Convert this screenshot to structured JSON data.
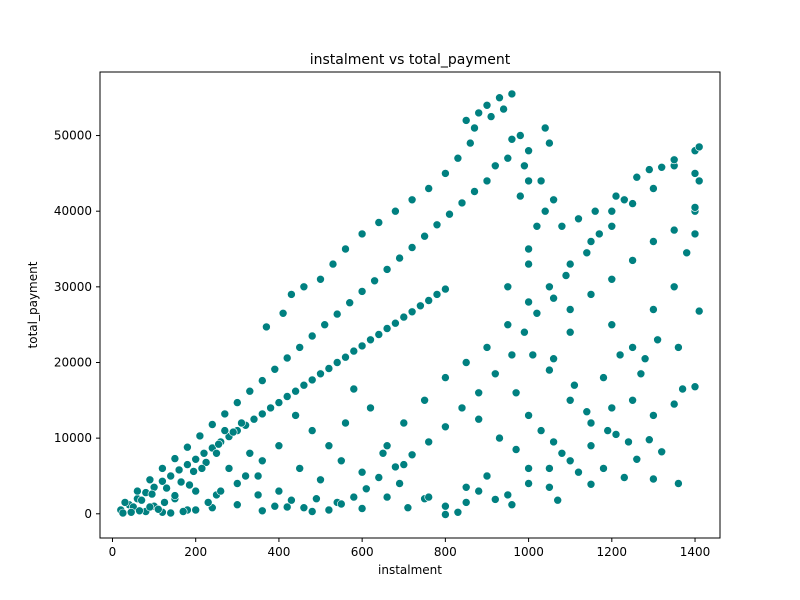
{
  "chart_data": {
    "type": "scatter",
    "title": "instalment vs total_payment",
    "xlabel": "instalment",
    "ylabel": "total_payment",
    "xlim": [
      -30,
      1460
    ],
    "ylim": [
      -3200,
      58400
    ],
    "xticks": [
      0,
      200,
      400,
      600,
      800,
      1000,
      1200,
      1400
    ],
    "yticks": [
      0,
      10000,
      20000,
      30000,
      40000,
      50000
    ],
    "xtick_labels": [
      "0",
      "200",
      "400",
      "600",
      "800",
      "1000",
      "1200",
      "1400"
    ],
    "ytick_labels": [
      "0",
      "10000",
      "20000",
      "30000",
      "40000",
      "50000"
    ],
    "grid": false,
    "marker_color": "#008080",
    "marker_edge_color": "#ffffff",
    "series": [
      {
        "points": [
          [
            20,
            500
          ],
          [
            40,
            1200
          ],
          [
            60,
            2000
          ],
          [
            80,
            2800
          ],
          [
            100,
            3500
          ],
          [
            120,
            4300
          ],
          [
            140,
            5000
          ],
          [
            160,
            5800
          ],
          [
            180,
            6500
          ],
          [
            200,
            7200
          ],
          [
            220,
            8000
          ],
          [
            240,
            8700
          ],
          [
            260,
            9500
          ],
          [
            280,
            10200
          ],
          [
            300,
            11000
          ],
          [
            320,
            11700
          ],
          [
            340,
            12500
          ],
          [
            360,
            13200
          ],
          [
            380,
            14000
          ],
          [
            400,
            14700
          ],
          [
            420,
            15500
          ],
          [
            440,
            16200
          ],
          [
            460,
            17000
          ],
          [
            480,
            17700
          ],
          [
            500,
            18500
          ],
          [
            520,
            19200
          ],
          [
            540,
            20000
          ],
          [
            560,
            20700
          ],
          [
            580,
            21500
          ],
          [
            600,
            22200
          ],
          [
            620,
            23000
          ],
          [
            640,
            23700
          ],
          [
            660,
            24500
          ],
          [
            680,
            25200
          ],
          [
            700,
            26000
          ],
          [
            720,
            26700
          ],
          [
            740,
            27500
          ],
          [
            760,
            28200
          ],
          [
            780,
            29000
          ],
          [
            800,
            29700
          ],
          [
            30,
            1500
          ],
          [
            60,
            3000
          ],
          [
            90,
            4500
          ],
          [
            120,
            6000
          ],
          [
            150,
            7300
          ],
          [
            180,
            8800
          ],
          [
            210,
            10300
          ],
          [
            240,
            11800
          ],
          [
            270,
            13200
          ],
          [
            300,
            14700
          ],
          [
            330,
            16200
          ],
          [
            360,
            17600
          ],
          [
            390,
            19100
          ],
          [
            420,
            20600
          ],
          [
            450,
            22000
          ],
          [
            480,
            23500
          ],
          [
            510,
            25000
          ],
          [
            540,
            26400
          ],
          [
            570,
            27900
          ],
          [
            600,
            29400
          ],
          [
            630,
            30800
          ],
          [
            660,
            32300
          ],
          [
            690,
            33800
          ],
          [
            720,
            35200
          ],
          [
            750,
            36700
          ],
          [
            780,
            38200
          ],
          [
            810,
            39600
          ],
          [
            840,
            41100
          ],
          [
            870,
            42600
          ],
          [
            900,
            44000
          ],
          [
            100,
            1000
          ],
          [
            150,
            2000
          ],
          [
            200,
            3000
          ],
          [
            250,
            2500
          ],
          [
            300,
            4000
          ],
          [
            350,
            5000
          ],
          [
            400,
            3000
          ],
          [
            450,
            6000
          ],
          [
            500,
            4500
          ],
          [
            550,
            7000
          ],
          [
            600,
            5500
          ],
          [
            650,
            8000
          ],
          [
            700,
            6500
          ],
          [
            750,
            2000
          ],
          [
            800,
            1000
          ],
          [
            850,
            3500
          ],
          [
            900,
            5000
          ],
          [
            950,
            2500
          ],
          [
            1000,
            4000
          ],
          [
            1050,
            6000
          ],
          [
            120,
            200
          ],
          [
            180,
            500
          ],
          [
            240,
            800
          ],
          [
            300,
            1200
          ],
          [
            360,
            400
          ],
          [
            420,
            900
          ],
          [
            480,
            300
          ],
          [
            540,
            1500
          ],
          [
            600,
            700
          ],
          [
            660,
            2200
          ],
          [
            700,
            12000
          ],
          [
            750,
            15000
          ],
          [
            800,
            18000
          ],
          [
            850,
            20000
          ],
          [
            900,
            22000
          ],
          [
            950,
            25000
          ],
          [
            1000,
            28000
          ],
          [
            1050,
            30000
          ],
          [
            1100,
            33000
          ],
          [
            1150,
            36000
          ],
          [
            1200,
            38000
          ],
          [
            1250,
            41000
          ],
          [
            1300,
            43000
          ],
          [
            1350,
            46000
          ],
          [
            1400,
            48000
          ],
          [
            1100,
            27000
          ],
          [
            1150,
            29000
          ],
          [
            1200,
            31000
          ],
          [
            1250,
            33500
          ],
          [
            1300,
            36000
          ],
          [
            1350,
            37500
          ],
          [
            1400,
            40000
          ],
          [
            1200,
            25000
          ],
          [
            1250,
            22000
          ],
          [
            1300,
            27000
          ],
          [
            1350,
            30000
          ],
          [
            1400,
            37000
          ],
          [
            1380,
            34500
          ],
          [
            1310,
            23000
          ],
          [
            1280,
            20500
          ],
          [
            850,
            52000
          ],
          [
            880,
            53000
          ],
          [
            900,
            54000
          ],
          [
            930,
            55000
          ],
          [
            960,
            55500
          ],
          [
            980,
            50000
          ],
          [
            1040,
            51000
          ],
          [
            1000,
            48000
          ],
          [
            950,
            47000
          ],
          [
            920,
            46000
          ],
          [
            1050,
            49000
          ],
          [
            1000,
            44000
          ],
          [
            980,
            42000
          ],
          [
            1040,
            40000
          ],
          [
            1020,
            38000
          ],
          [
            1000,
            35000
          ],
          [
            950,
            30000
          ],
          [
            1000,
            33000
          ],
          [
            1100,
            24000
          ],
          [
            1050,
            19000
          ],
          [
            1100,
            15000
          ],
          [
            1150,
            12000
          ],
          [
            1200,
            14000
          ],
          [
            1250,
            15000
          ],
          [
            1300,
            13000
          ],
          [
            1350,
            14500
          ],
          [
            1400,
            16800
          ],
          [
            1180,
            18000
          ],
          [
            1220,
            21000
          ],
          [
            1270,
            18500
          ],
          [
            1370,
            16500
          ],
          [
            1410,
            26800
          ],
          [
            1360,
            22000
          ],
          [
            1400,
            40500
          ],
          [
            1410,
            48500
          ],
          [
            1360,
            4000
          ],
          [
            1300,
            4600
          ],
          [
            1230,
            4800
          ],
          [
            1180,
            6000
          ],
          [
            1150,
            9000
          ],
          [
            1100,
            7000
          ],
          [
            1050,
            3500
          ],
          [
            1000,
            6000
          ],
          [
            970,
            8500
          ],
          [
            930,
            10000
          ],
          [
            880,
            12500
          ],
          [
            850,
            1500
          ],
          [
            880,
            3000
          ],
          [
            830,
            200
          ],
          [
            800,
            -100
          ],
          [
            760,
            2200
          ],
          [
            710,
            800
          ],
          [
            690,
            4000
          ],
          [
            660,
            9000
          ],
          [
            620,
            14000
          ],
          [
            580,
            16500
          ],
          [
            560,
            12000
          ],
          [
            520,
            9000
          ],
          [
            480,
            11000
          ],
          [
            440,
            13000
          ],
          [
            400,
            9000
          ],
          [
            360,
            7000
          ],
          [
            320,
            5000
          ],
          [
            280,
            6000
          ],
          [
            260,
            3000
          ],
          [
            230,
            1500
          ],
          [
            200,
            500
          ],
          [
            170,
            300
          ],
          [
            140,
            100
          ],
          [
            110,
            600
          ],
          [
            80,
            300
          ],
          [
            50,
            900
          ],
          [
            70,
            1800
          ],
          [
            95,
            2600
          ],
          [
            130,
            3400
          ],
          [
            165,
            4200
          ],
          [
            195,
            5600
          ],
          [
            225,
            6800
          ],
          [
            255,
            9200
          ],
          [
            290,
            10800
          ],
          [
            370,
            24700
          ],
          [
            410,
            26500
          ],
          [
            430,
            29000
          ],
          [
            460,
            30000
          ],
          [
            500,
            31000
          ],
          [
            530,
            33000
          ],
          [
            560,
            35000
          ],
          [
            600,
            37000
          ],
          [
            640,
            38500
          ],
          [
            680,
            40000
          ],
          [
            720,
            41500
          ],
          [
            760,
            43000
          ],
          [
            800,
            45000
          ],
          [
            830,
            47000
          ],
          [
            860,
            49000
          ],
          [
            870,
            51000
          ],
          [
            910,
            52500
          ],
          [
            940,
            53500
          ],
          [
            960,
            49500
          ],
          [
            990,
            46000
          ],
          [
            1030,
            44000
          ],
          [
            1060,
            41500
          ],
          [
            1080,
            38000
          ],
          [
            1120,
            39000
          ],
          [
            1160,
            40000
          ],
          [
            1210,
            42000
          ],
          [
            1260,
            44500
          ],
          [
            1290,
            45500
          ],
          [
            1320,
            45800
          ],
          [
            1350,
            46800
          ],
          [
            1400,
            45000
          ],
          [
            1410,
            44000
          ],
          [
            1200,
            40000
          ],
          [
            1230,
            41500
          ],
          [
            1170,
            37000
          ],
          [
            1140,
            34500
          ],
          [
            1090,
            31500
          ],
          [
            1060,
            28500
          ],
          [
            1020,
            26500
          ],
          [
            990,
            24000
          ],
          [
            960,
            21000
          ],
          [
            920,
            18500
          ],
          [
            880,
            16000
          ],
          [
            840,
            14000
          ],
          [
            800,
            11500
          ],
          [
            760,
            9500
          ],
          [
            720,
            7800
          ],
          [
            680,
            6200
          ],
          [
            640,
            4800
          ],
          [
            610,
            3300
          ],
          [
            580,
            2200
          ],
          [
            550,
            1300
          ],
          [
            520,
            500
          ],
          [
            490,
            2000
          ],
          [
            460,
            800
          ],
          [
            430,
            1800
          ],
          [
            390,
            1000
          ],
          [
            350,
            2500
          ],
          [
            330,
            8000
          ],
          [
            310,
            12000
          ],
          [
            270,
            11000
          ],
          [
            250,
            8000
          ],
          [
            215,
            6000
          ],
          [
            185,
            3800
          ],
          [
            150,
            2400
          ],
          [
            125,
            1500
          ],
          [
            90,
            900
          ],
          [
            65,
            400
          ],
          [
            45,
            200
          ],
          [
            25,
            100
          ],
          [
            1000,
            13000
          ],
          [
            1030,
            11000
          ],
          [
            1060,
            9500
          ],
          [
            1080,
            8000
          ],
          [
            1120,
            5500
          ],
          [
            1150,
            3900
          ],
          [
            1070,
            1800
          ],
          [
            960,
            1200
          ],
          [
            920,
            1900
          ],
          [
            970,
            16000
          ],
          [
            1010,
            21000
          ],
          [
            1060,
            20500
          ],
          [
            1110,
            17000
          ],
          [
            1140,
            13500
          ],
          [
            1190,
            11000
          ],
          [
            1240,
            9500
          ],
          [
            1290,
            9800
          ],
          [
            1320,
            8200
          ],
          [
            1260,
            7200
          ],
          [
            1210,
            10500
          ]
        ]
      }
    ]
  }
}
